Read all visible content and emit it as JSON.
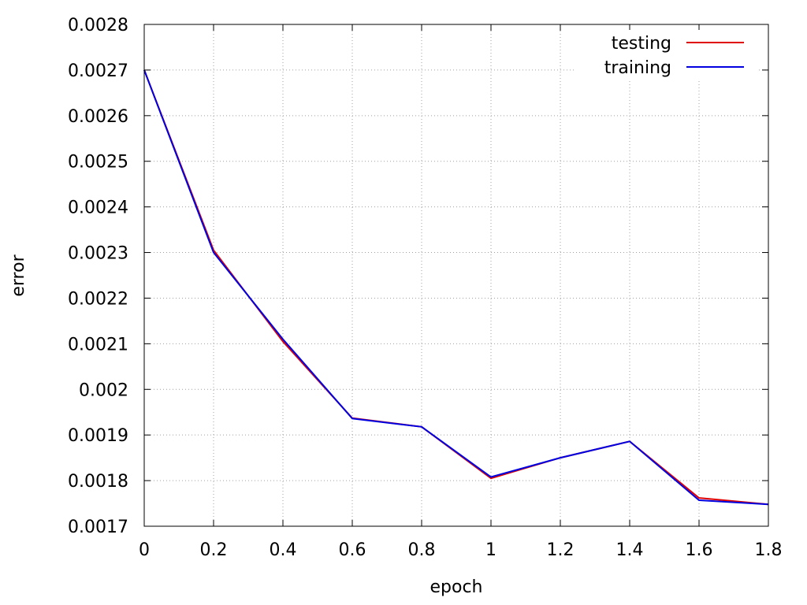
{
  "chart_data": {
    "type": "line",
    "title": "",
    "xlabel": "epoch",
    "ylabel": "error",
    "xlim": [
      0,
      1.8
    ],
    "ylim": [
      0.0017,
      0.0028
    ],
    "grid": true,
    "legend_position": "top-right",
    "xticks": [
      0,
      0.2,
      0.4,
      0.6,
      0.8,
      1,
      1.2,
      1.4,
      1.6,
      1.8
    ],
    "xtick_labels": [
      "0",
      "0.2",
      "0.4",
      "0.6",
      "0.8",
      "1",
      "1.2",
      "1.4",
      "1.6",
      "1.8"
    ],
    "yticks": [
      0.0017,
      0.0018,
      0.0019,
      0.002,
      0.0021,
      0.0022,
      0.0023,
      0.0024,
      0.0025,
      0.0026,
      0.0027,
      0.0028
    ],
    "ytick_labels": [
      "0.0017",
      "0.0018",
      "0.0019",
      "0.002",
      "0.0021",
      "0.0022",
      "0.0023",
      "0.0024",
      "0.0025",
      "0.0026",
      "0.0027",
      "0.0028"
    ],
    "x": [
      0,
      0.2,
      0.4,
      0.6,
      0.8,
      1.0,
      1.2,
      1.4,
      1.6,
      1.8
    ],
    "series": [
      {
        "name": "testing",
        "color": "#e00000",
        "values": [
          0.0027,
          0.002305,
          0.002105,
          0.001937,
          0.001918,
          0.001805,
          0.00185,
          0.001886,
          0.001762,
          0.001748
        ]
      },
      {
        "name": "training",
        "color": "#0000e0",
        "values": [
          0.0027,
          0.0023,
          0.00211,
          0.001936,
          0.001918,
          0.001808,
          0.00185,
          0.001886,
          0.001757,
          0.001748
        ]
      }
    ]
  }
}
